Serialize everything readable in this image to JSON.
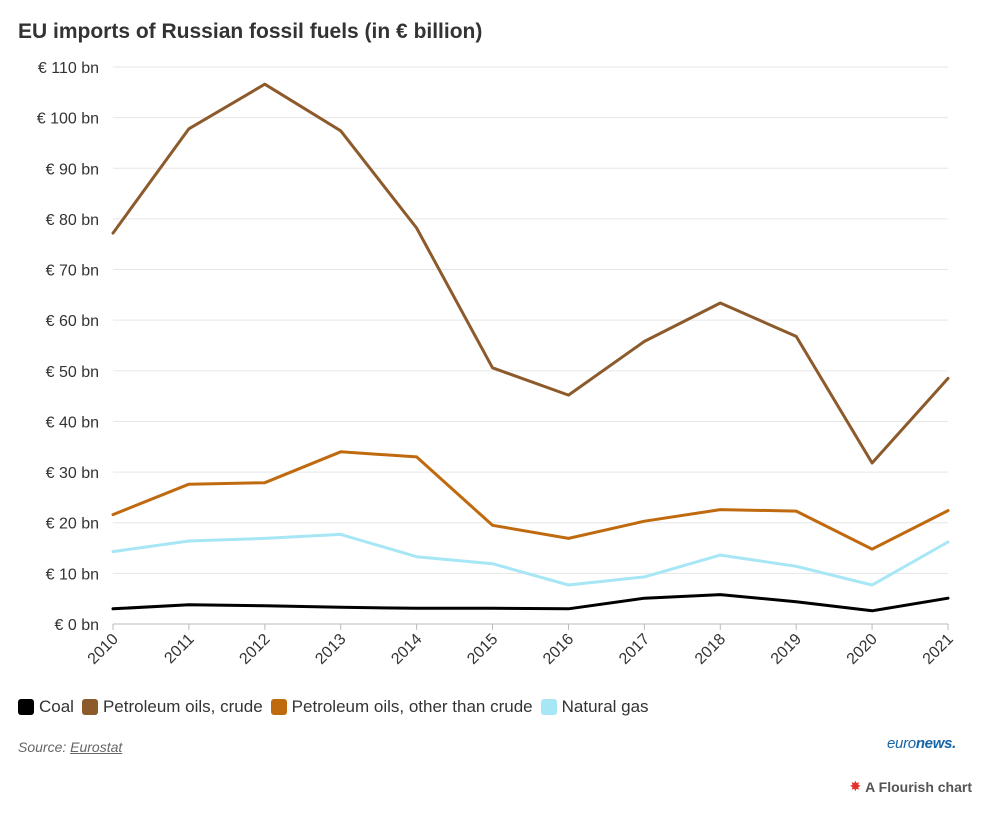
{
  "header": {
    "title": "EU imports of Russian fossil fuels (in € billion)"
  },
  "chart_data": {
    "type": "line",
    "title": "EU imports of Russian fossil fuels (in € billion)",
    "x": [
      "2010",
      "2011",
      "2012",
      "2013",
      "2014",
      "2015",
      "2016",
      "2017",
      "2018",
      "2019",
      "2020",
      "2021"
    ],
    "ylim": [
      0,
      110
    ],
    "yticks": [
      0,
      10,
      20,
      30,
      40,
      50,
      60,
      70,
      80,
      90,
      100,
      110
    ],
    "ytick_labels": [
      "€ 0 bn",
      "€ 10 bn",
      "€ 20 bn",
      "€ 30 bn",
      "€ 40 bn",
      "€ 50 bn",
      "€ 60 bn",
      "€ 70 bn",
      "€ 80 bn",
      "€ 90 bn",
      "€ 100 bn",
      "€ 110 bn"
    ],
    "grid": true,
    "legend_position": "bottom-left",
    "series": [
      {
        "name": "Coal",
        "color": "#000000",
        "values": [
          3.0,
          3.8,
          3.6,
          3.3,
          3.1,
          3.1,
          3.0,
          5.1,
          5.8,
          4.4,
          2.6,
          5.1
        ]
      },
      {
        "name": "Petroleum oils, crude",
        "color": "#8c5a2b",
        "values": [
          77.2,
          97.8,
          106.6,
          97.4,
          78.2,
          50.6,
          45.2,
          55.8,
          63.4,
          56.8,
          31.8,
          48.5
        ]
      },
      {
        "name": "Petroleum oils, other than crude",
        "color": "#c06a10",
        "values": [
          21.6,
          27.6,
          27.9,
          34.0,
          33.0,
          19.5,
          16.9,
          20.3,
          22.6,
          22.3,
          14.8,
          22.4
        ]
      },
      {
        "name": "Natural gas",
        "color": "#a6e6f5",
        "values": [
          14.3,
          16.4,
          16.9,
          17.7,
          13.3,
          11.9,
          7.7,
          9.3,
          13.6,
          11.4,
          7.7,
          16.2
        ]
      }
    ]
  },
  "footer": {
    "source_prefix": "Source: ",
    "source_link": "Eurostat",
    "brand_light": "euro",
    "brand_bold": "news.",
    "flourish_label": "A Flourish chart"
  }
}
